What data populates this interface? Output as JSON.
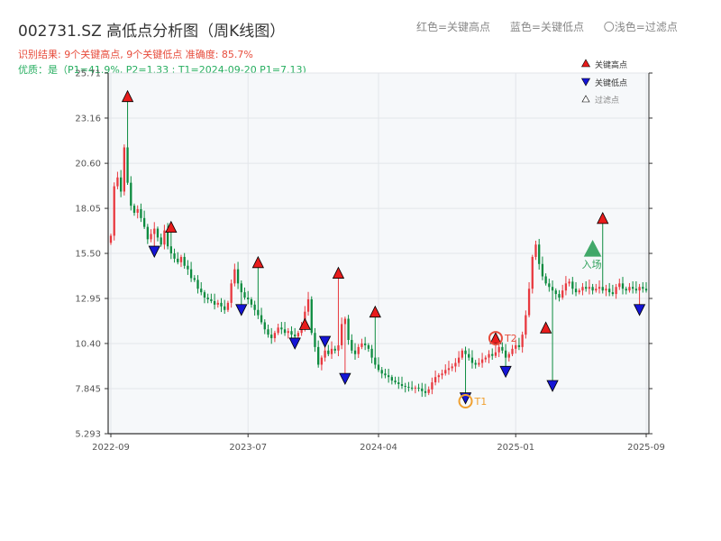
{
  "title": "002731.SZ 高低点分析图（周K线图）",
  "subtitle_result": "识别结果: 9个关键高点, 9个关键低点  准确度: 85.7%",
  "subtitle_quality": "优质：是（P1=41.9%, P2=1.33 ; T1=2024-09-20 P1=7.13)",
  "top_legend": {
    "red": "红色=关键高点",
    "blue": "蓝色=关键低点",
    "light": "〇浅色=过滤点"
  },
  "colors": {
    "up": "#e8393f",
    "down": "#0c8b3f",
    "key_high": "#e81c1c",
    "key_low": "#1515d6",
    "grid": "#e3e6ea",
    "plot_bg": "#f6f8fa",
    "T1": "#f0a030",
    "T2": "#e74c3c",
    "entry": "#2ea05a"
  },
  "chart_data": {
    "type": "candlestick",
    "title": "002731.SZ 高低点分析图（周K线图）",
    "ylim": [
      5.293,
      25.71
    ],
    "y_ticks": [
      "5.293",
      "7.845",
      "10.40",
      "12.95",
      "15.50",
      "18.05",
      "20.60",
      "23.16",
      "25.71"
    ],
    "x_tick_labels": [
      "2022-09",
      "2023-07",
      "2024-04",
      "2025-01",
      "2025-09"
    ],
    "x_tick_weeks": [
      0,
      41,
      80,
      121,
      160
    ],
    "total_weeks": 161,
    "grid": true,
    "legend_position": "top-right",
    "legend": {
      "key_high": "关键高点",
      "key_low": "关键低点",
      "filtered": "过滤点"
    },
    "anchors": [
      [
        0,
        16.5
      ],
      [
        1,
        19.3
      ],
      [
        2,
        19.8
      ],
      [
        3,
        19.0
      ],
      [
        4,
        21.5
      ],
      [
        5,
        19.5
      ],
      [
        6,
        18.2
      ],
      [
        7,
        17.8
      ],
      [
        8,
        18.0
      ],
      [
        9,
        17.5
      ],
      [
        10,
        17.0
      ],
      [
        11,
        16.3
      ],
      [
        12,
        16.6
      ],
      [
        13,
        16.9
      ],
      [
        14,
        16.4
      ],
      [
        15,
        16.0
      ],
      [
        16,
        16.8
      ],
      [
        17,
        15.9
      ],
      [
        18,
        15.5
      ],
      [
        19,
        15.2
      ],
      [
        20,
        15.0
      ],
      [
        21,
        15.3
      ],
      [
        22,
        14.8
      ],
      [
        23,
        14.6
      ],
      [
        24,
        14.1
      ],
      [
        25,
        14.0
      ],
      [
        26,
        13.5
      ],
      [
        27,
        13.3
      ],
      [
        28,
        13.0
      ],
      [
        29,
        12.9
      ],
      [
        30,
        12.8
      ],
      [
        31,
        12.6
      ],
      [
        32,
        12.7
      ],
      [
        33,
        12.5
      ],
      [
        34,
        12.3
      ],
      [
        35,
        12.7
      ],
      [
        36,
        13.8
      ],
      [
        37,
        14.6
      ],
      [
        38,
        13.8
      ],
      [
        39,
        13.3
      ],
      [
        40,
        13.0
      ],
      [
        41,
        12.9
      ],
      [
        42,
        12.6
      ],
      [
        43,
        12.3
      ],
      [
        44,
        12.0
      ],
      [
        45,
        11.6
      ],
      [
        46,
        11.2
      ],
      [
        47,
        10.9
      ],
      [
        48,
        10.7
      ],
      [
        49,
        11.0
      ],
      [
        50,
        11.3
      ],
      [
        51,
        11.2
      ],
      [
        52,
        11.0
      ],
      [
        53,
        11.1
      ],
      [
        54,
        10.9
      ],
      [
        55,
        10.8
      ],
      [
        56,
        11.0
      ],
      [
        57,
        11.4
      ],
      [
        58,
        12.2
      ],
      [
        59,
        12.9
      ],
      [
        60,
        11.0
      ],
      [
        61,
        10.2
      ],
      [
        62,
        9.2
      ],
      [
        63,
        9.6
      ],
      [
        64,
        10.0
      ],
      [
        65,
        9.8
      ],
      [
        66,
        10.1
      ],
      [
        67,
        10.0
      ],
      [
        68,
        10.3
      ],
      [
        69,
        11.5
      ],
      [
        70,
        11.8
      ],
      [
        71,
        10.6
      ],
      [
        72,
        10.0
      ],
      [
        73,
        9.8
      ],
      [
        74,
        10.2
      ],
      [
        75,
        10.4
      ],
      [
        76,
        10.3
      ],
      [
        77,
        10.1
      ],
      [
        78,
        9.6
      ],
      [
        79,
        9.2
      ],
      [
        80,
        8.9
      ],
      [
        81,
        8.7
      ],
      [
        82,
        8.6
      ],
      [
        83,
        8.5
      ],
      [
        84,
        8.3
      ],
      [
        85,
        8.2
      ],
      [
        86,
        8.1
      ],
      [
        87,
        8.0
      ],
      [
        88,
        7.95
      ],
      [
        89,
        7.9
      ],
      [
        90,
        7.85
      ],
      [
        91,
        7.9
      ],
      [
        92,
        7.85
      ],
      [
        93,
        7.7
      ],
      [
        94,
        7.6
      ],
      [
        95,
        7.8
      ],
      [
        96,
        8.2
      ],
      [
        97,
        8.5
      ],
      [
        98,
        8.6
      ],
      [
        99,
        8.7
      ],
      [
        100,
        8.9
      ],
      [
        101,
        9.0
      ],
      [
        102,
        9.1
      ],
      [
        103,
        9.3
      ],
      [
        104,
        9.6
      ],
      [
        105,
        10.0
      ],
      [
        106,
        9.8
      ],
      [
        107,
        9.6
      ],
      [
        108,
        9.3
      ],
      [
        109,
        9.2
      ],
      [
        110,
        9.3
      ],
      [
        111,
        9.5
      ],
      [
        112,
        9.6
      ],
      [
        113,
        9.8
      ],
      [
        114,
        9.7
      ],
      [
        115,
        9.9
      ],
      [
        116,
        10.2
      ],
      [
        117,
        10.0
      ],
      [
        118,
        9.6
      ],
      [
        119,
        9.8
      ],
      [
        120,
        10.1
      ],
      [
        121,
        10.3
      ],
      [
        122,
        10.2
      ],
      [
        123,
        10.9
      ],
      [
        124,
        12.0
      ],
      [
        125,
        13.5
      ],
      [
        126,
        15.3
      ],
      [
        127,
        16.0
      ],
      [
        128,
        14.9
      ],
      [
        129,
        14.2
      ],
      [
        130,
        13.8
      ],
      [
        131,
        13.6
      ],
      [
        132,
        13.4
      ],
      [
        133,
        13.2
      ],
      [
        134,
        13.0
      ],
      [
        135,
        13.4
      ],
      [
        136,
        13.8
      ],
      [
        137,
        13.9
      ],
      [
        138,
        13.5
      ],
      [
        139,
        13.3
      ],
      [
        140,
        13.4
      ],
      [
        141,
        13.6
      ],
      [
        142,
        13.5
      ],
      [
        143,
        13.6
      ],
      [
        144,
        13.4
      ],
      [
        145,
        13.5
      ],
      [
        146,
        13.6
      ],
      [
        147,
        13.4
      ],
      [
        148,
        13.5
      ],
      [
        149,
        13.3
      ],
      [
        150,
        13.2
      ],
      [
        151,
        13.6
      ],
      [
        152,
        13.8
      ],
      [
        153,
        13.5
      ],
      [
        154,
        13.4
      ],
      [
        155,
        13.6
      ],
      [
        156,
        13.5
      ],
      [
        157,
        13.4
      ],
      [
        158,
        13.6
      ],
      [
        159,
        13.5
      ],
      [
        160,
        13.4
      ]
    ],
    "key_highs": [
      {
        "week": 5,
        "price": 24.4
      },
      {
        "week": 18,
        "price": 17.0
      },
      {
        "week": 44,
        "price": 15.0
      },
      {
        "week": 58,
        "price": 11.5
      },
      {
        "week": 68,
        "price": 14.4
      },
      {
        "week": 79,
        "price": 12.2
      },
      {
        "week": 115,
        "price": 10.7
      },
      {
        "week": 130,
        "price": 11.3
      },
      {
        "week": 147,
        "price": 17.5
      }
    ],
    "key_lows": [
      {
        "week": 13,
        "price": 15.6
      },
      {
        "week": 39,
        "price": 12.3
      },
      {
        "week": 55,
        "price": 10.4
      },
      {
        "week": 64,
        "price": 10.5
      },
      {
        "week": 70,
        "price": 8.4
      },
      {
        "week": 106,
        "price": 7.3
      },
      {
        "week": 118,
        "price": 8.8
      },
      {
        "week": 132,
        "price": 8.0
      },
      {
        "week": 158,
        "price": 12.3
      }
    ],
    "annotations": [
      {
        "label": "T1",
        "week": 106,
        "price": 7.13
      },
      {
        "label": "T2",
        "week": 115,
        "price": 10.7
      },
      {
        "label": "入场",
        "week": 144,
        "price": 15.7
      }
    ]
  }
}
